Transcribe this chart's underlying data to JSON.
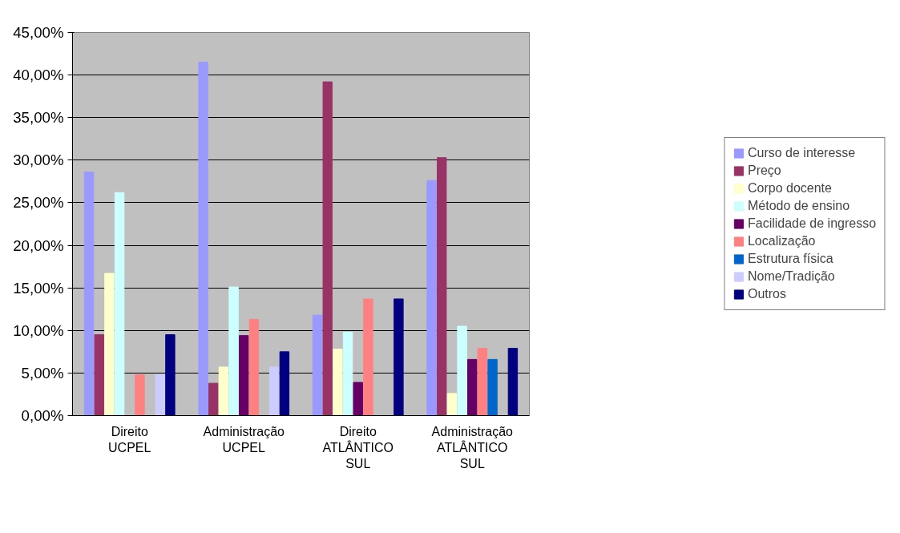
{
  "chart_data": {
    "type": "bar",
    "categories": [
      "Direito\nUCPEL",
      "Administração\nUCPEL",
      "Direito\nATLÂNTICO SUL",
      "Administração\nATLÂNTICO SUL"
    ],
    "series": [
      {
        "name": "Curso de interesse",
        "color": "#9999ff",
        "values": [
          28.6,
          41.5,
          11.8,
          27.6
        ]
      },
      {
        "name": "Preço",
        "color": "#993366",
        "values": [
          9.5,
          3.8,
          39.2,
          30.3
        ]
      },
      {
        "name": "Corpo docente",
        "color": "#ffffcc",
        "values": [
          16.7,
          5.7,
          7.8,
          2.6
        ]
      },
      {
        "name": "Método de ensino",
        "color": "#ccffff",
        "values": [
          26.2,
          15.1,
          9.8,
          10.5
        ]
      },
      {
        "name": "Facilidade de ingresso",
        "color": "#660066",
        "values": [
          0,
          9.4,
          3.9,
          6.6
        ]
      },
      {
        "name": "Localização",
        "color": "#ff8080",
        "values": [
          4.8,
          11.3,
          13.7,
          7.9
        ]
      },
      {
        "name": "Estrutura física",
        "color": "#0066cc",
        "values": [
          0,
          0,
          0,
          6.6
        ]
      },
      {
        "name": "Nome/Tradição",
        "color": "#ccccff",
        "values": [
          4.8,
          5.7,
          0,
          0
        ]
      },
      {
        "name": "Outros",
        "color": "#000080",
        "values": [
          9.5,
          7.5,
          13.7,
          7.9
        ]
      }
    ],
    "ylim": [
      0,
      45
    ],
    "yticks": [
      {
        "value": 0,
        "label": "0,00%"
      },
      {
        "value": 5,
        "label": "5,00%"
      },
      {
        "value": 10,
        "label": "10,00%"
      },
      {
        "value": 15,
        "label": "15,00%"
      },
      {
        "value": 20,
        "label": "20,00%"
      },
      {
        "value": 25,
        "label": "25,00%"
      },
      {
        "value": 30,
        "label": "30,00%"
      },
      {
        "value": 35,
        "label": "35,00%"
      },
      {
        "value": 40,
        "label": "40,00%"
      },
      {
        "value": 45,
        "label": "45,00%"
      }
    ],
    "grid": "y",
    "legend": "right"
  }
}
